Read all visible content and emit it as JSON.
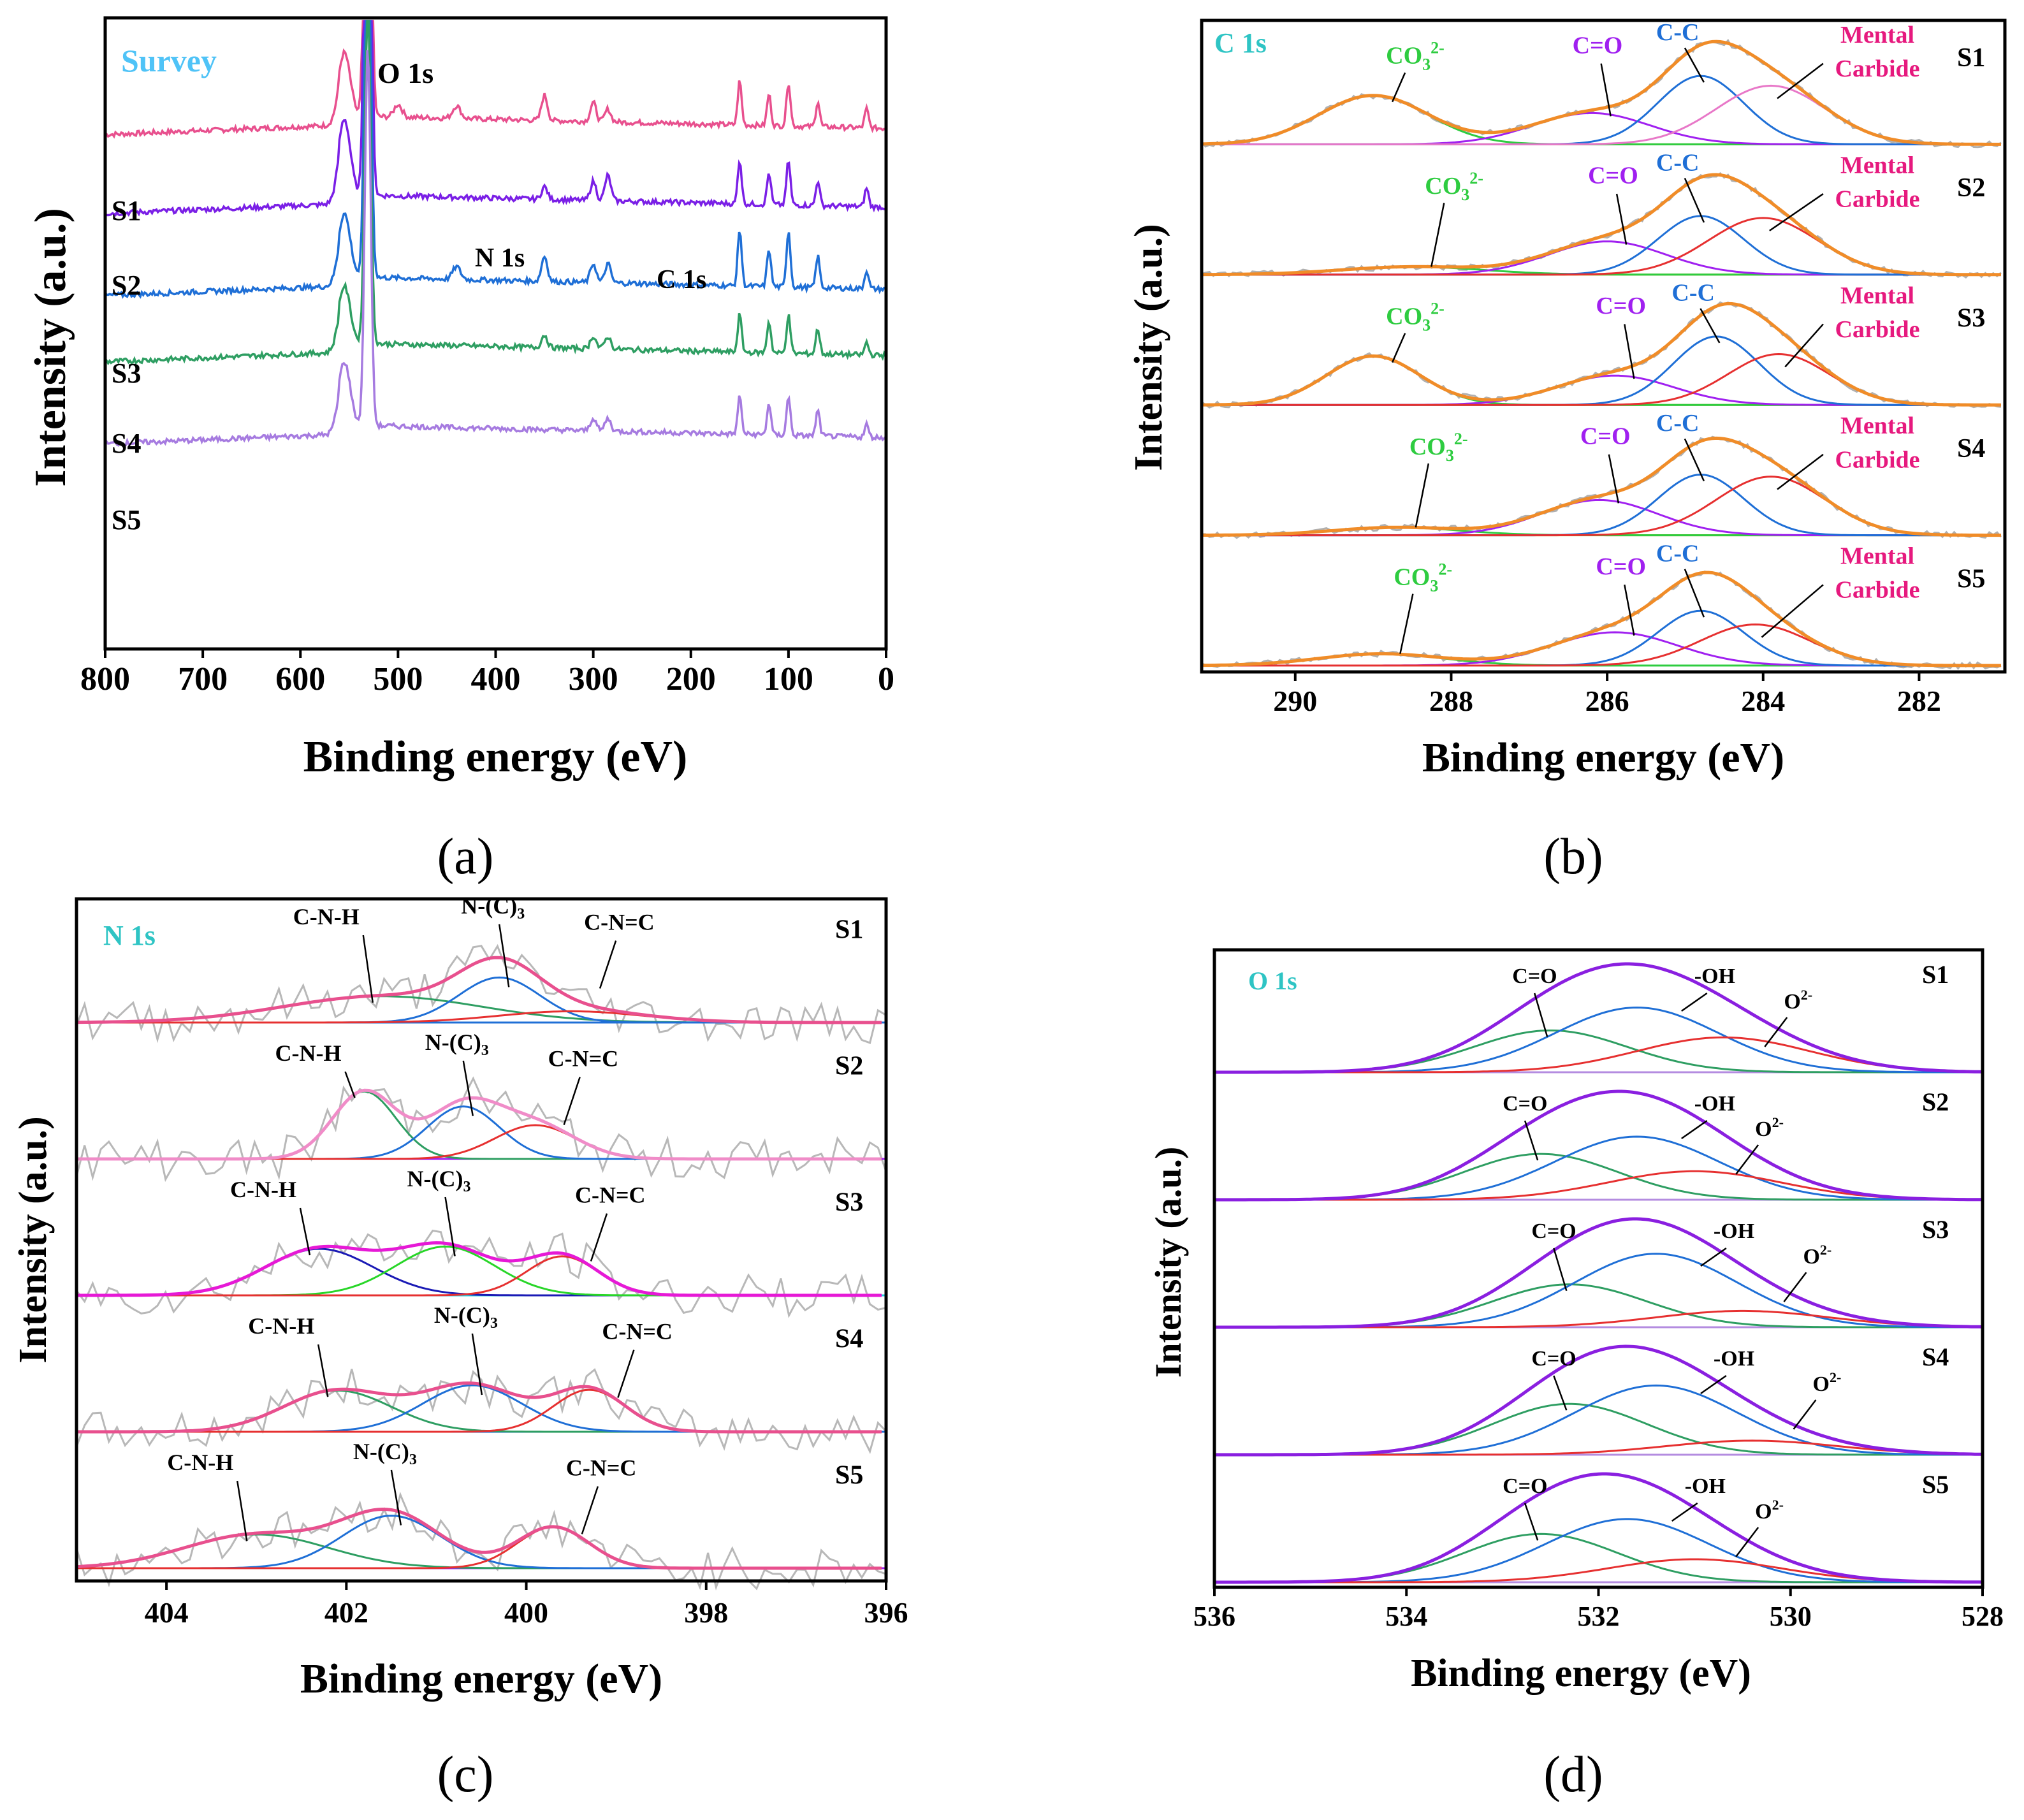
{
  "chart_data": [
    {
      "panel": "(a)",
      "type": "line",
      "title": "Survey",
      "xlabel": "Binding energy (eV)",
      "ylabel": "Intensity (a.u.)",
      "xlim": [
        800,
        0
      ],
      "x_ticks": [
        800,
        700,
        600,
        500,
        400,
        300,
        200,
        100,
        0
      ],
      "peak_annotations": [
        {
          "label": "O 1s",
          "x": 531
        },
        {
          "label": "N 1s",
          "x": 400
        },
        {
          "label": "C 1s",
          "x": 285
        }
      ],
      "series": [
        {
          "name": "S1",
          "color": "#e8508e",
          "baseline": 0.815,
          "features": [
            [
              555,
              0.1,
              6
            ],
            [
              531,
              0.88,
              3
            ],
            [
              500,
              0.02,
              4
            ],
            [
              440,
              0.02,
              4
            ],
            [
              350,
              0.04,
              3
            ],
            [
              300,
              0.03,
              3
            ],
            [
              285,
              0.02,
              3
            ],
            [
              150,
              0.07,
              2
            ],
            [
              120,
              0.05,
              2
            ],
            [
              100,
              0.07,
              2
            ],
            [
              70,
              0.04,
              2
            ],
            [
              20,
              0.03,
              2
            ]
          ]
        },
        {
          "name": "S2",
          "color": "#7a1fe6",
          "baseline": 0.69,
          "features": [
            [
              555,
              0.12,
              6
            ],
            [
              531,
              1.0,
              3
            ],
            [
              350,
              0.02,
              3
            ],
            [
              300,
              0.03,
              3
            ],
            [
              285,
              0.04,
              3
            ],
            [
              150,
              0.07,
              2
            ],
            [
              120,
              0.05,
              2
            ],
            [
              100,
              0.07,
              2
            ],
            [
              70,
              0.04,
              2
            ],
            [
              20,
              0.03,
              2
            ]
          ]
        },
        {
          "name": "S3",
          "color": "#1f6fd6",
          "baseline": 0.56,
          "features": [
            [
              555,
              0.1,
              6
            ],
            [
              531,
              0.7,
              3
            ],
            [
              440,
              0.02,
              4
            ],
            [
              350,
              0.04,
              3
            ],
            [
              300,
              0.03,
              3
            ],
            [
              285,
              0.03,
              3
            ],
            [
              150,
              0.09,
              2
            ],
            [
              120,
              0.06,
              2
            ],
            [
              100,
              0.09,
              2
            ],
            [
              70,
              0.05,
              2
            ],
            [
              20,
              0.03,
              2
            ]
          ]
        },
        {
          "name": "S4",
          "color": "#2e9e62",
          "baseline": 0.455,
          "features": [
            [
              555,
              0.09,
              6
            ],
            [
              531,
              0.55,
              3
            ],
            [
              350,
              0.02,
              3
            ],
            [
              300,
              0.02,
              3
            ],
            [
              285,
              0.02,
              3
            ],
            [
              150,
              0.06,
              2
            ],
            [
              120,
              0.05,
              2
            ],
            [
              100,
              0.06,
              2
            ],
            [
              70,
              0.04,
              2
            ],
            [
              20,
              0.02,
              2
            ]
          ]
        },
        {
          "name": "S5",
          "color": "#a67be0",
          "baseline": 0.325,
          "features": [
            [
              555,
              0.1,
              6
            ],
            [
              531,
              0.6,
              3
            ],
            [
              300,
              0.02,
              3
            ],
            [
              285,
              0.02,
              3
            ],
            [
              150,
              0.06,
              2
            ],
            [
              120,
              0.05,
              2
            ],
            [
              100,
              0.06,
              2
            ],
            [
              70,
              0.04,
              2
            ],
            [
              20,
              0.02,
              2
            ]
          ]
        }
      ]
    },
    {
      "panel": "(b)",
      "type": "line",
      "title": "C 1s",
      "xlabel": "Binding energy (eV)",
      "ylabel": "Intensity (a.u.)",
      "xlim": [
        291.2,
        280.9
      ],
      "x_ticks": [
        290,
        288,
        286,
        284,
        282
      ],
      "component_colors": {
        "CO3": "#2ecc40",
        "C=O": "#a020f0",
        "C-C": "#1f6fd6",
        "Carbide": "#e6197e",
        "envelope": "#f08c28",
        "raw": "#b0b0b0",
        "baseline": "#b5a000"
      },
      "series": [
        {
          "name": "S1",
          "carbide_color": "#e878c8",
          "components": [
            {
              "label": "CO3 2-",
              "center": 289.0,
              "height": 0.5,
              "sigma": 0.7
            },
            {
              "label": "C=O",
              "center": 286.2,
              "height": 0.32,
              "sigma": 0.75
            },
            {
              "label": "C-C",
              "center": 284.8,
              "height": 0.7,
              "sigma": 0.55
            },
            {
              "label": "Mental Carbide",
              "center": 283.9,
              "height": 0.6,
              "sigma": 0.7
            }
          ]
        },
        {
          "name": "S2",
          "carbide_color": "#e63030",
          "components": [
            {
              "label": "CO3 2-",
              "center": 288.5,
              "height": 0.08,
              "sigma": 0.9
            },
            {
              "label": "C=O",
              "center": 286.0,
              "height": 0.34,
              "sigma": 0.75
            },
            {
              "label": "C-C",
              "center": 284.8,
              "height": 0.6,
              "sigma": 0.55
            },
            {
              "label": "Mental Carbide",
              "center": 284.0,
              "height": 0.58,
              "sigma": 0.7
            }
          ]
        },
        {
          "name": "S3",
          "carbide_color": "#e63030",
          "components": [
            {
              "label": "CO3 2-",
              "center": 289.0,
              "height": 0.5,
              "sigma": 0.6
            },
            {
              "label": "C=O",
              "center": 285.9,
              "height": 0.3,
              "sigma": 0.75
            },
            {
              "label": "C-C",
              "center": 284.6,
              "height": 0.7,
              "sigma": 0.55
            },
            {
              "label": "Mental Carbide",
              "center": 283.8,
              "height": 0.52,
              "sigma": 0.65
            }
          ]
        },
        {
          "name": "S4",
          "carbide_color": "#e63030",
          "components": [
            {
              "label": "CO3 2-",
              "center": 288.7,
              "height": 0.08,
              "sigma": 0.8
            },
            {
              "label": "C=O",
              "center": 286.1,
              "height": 0.36,
              "sigma": 0.75
            },
            {
              "label": "C-C",
              "center": 284.8,
              "height": 0.62,
              "sigma": 0.55
            },
            {
              "label": "Mental Carbide",
              "center": 283.9,
              "height": 0.6,
              "sigma": 0.7
            }
          ]
        },
        {
          "name": "S5",
          "carbide_color": "#e63030",
          "components": [
            {
              "label": "CO3 2-",
              "center": 288.9,
              "height": 0.12,
              "sigma": 0.8
            },
            {
              "label": "C=O",
              "center": 285.9,
              "height": 0.34,
              "sigma": 0.8
            },
            {
              "label": "C-C",
              "center": 284.8,
              "height": 0.56,
              "sigma": 0.55
            },
            {
              "label": "Mental Carbide",
              "center": 284.1,
              "height": 0.42,
              "sigma": 0.7
            }
          ]
        }
      ]
    },
    {
      "panel": "(c)",
      "type": "line",
      "title": "N 1s",
      "xlabel": "Binding energy (eV)",
      "ylabel": "Intensity (a.u.)",
      "xlim": [
        405,
        396
      ],
      "x_ticks": [
        404,
        402,
        400,
        398,
        396
      ],
      "series": [
        {
          "name": "S1",
          "envelope_color": "#e8508e",
          "components": [
            {
              "label": "C-N-H",
              "center": 401.6,
              "height": 0.35,
              "sigma": 1.1,
              "color": "#2e9e62"
            },
            {
              "label": "N-(C)3",
              "center": 400.3,
              "height": 0.6,
              "sigma": 0.45,
              "color": "#1f6fd6"
            },
            {
              "label": "C-N=C",
              "center": 399.5,
              "height": 0.15,
              "sigma": 0.8,
              "color": "#e63030"
            }
          ]
        },
        {
          "name": "S2",
          "envelope_color": "#f08cc8",
          "components": [
            {
              "label": "C-N-H",
              "center": 401.8,
              "height": 0.9,
              "sigma": 0.35,
              "color": "#2e9e62"
            },
            {
              "label": "N-(C)3",
              "center": 400.7,
              "height": 0.7,
              "sigma": 0.4,
              "color": "#1f6fd6"
            },
            {
              "label": "C-N=C",
              "center": 399.9,
              "height": 0.45,
              "sigma": 0.45,
              "color": "#e63030"
            }
          ]
        },
        {
          "name": "S3",
          "envelope_color": "#e619d6",
          "components": [
            {
              "label": "C-N-H",
              "center": 402.3,
              "height": 0.62,
              "sigma": 0.6,
              "color": "#1a1ab5"
            },
            {
              "label": "N-(C)3",
              "center": 400.9,
              "height": 0.65,
              "sigma": 0.55,
              "color": "#28d628"
            },
            {
              "label": "C-N=C",
              "center": 399.6,
              "height": 0.52,
              "sigma": 0.4,
              "color": "#e63030"
            }
          ]
        },
        {
          "name": "S4",
          "envelope_color": "#e8508e",
          "components": [
            {
              "label": "C-N-H",
              "center": 402.1,
              "height": 0.55,
              "sigma": 0.6,
              "color": "#2e9e62"
            },
            {
              "label": "N-(C)3",
              "center": 400.6,
              "height": 0.62,
              "sigma": 0.55,
              "color": "#1f6fd6"
            },
            {
              "label": "C-N=C",
              "center": 399.3,
              "height": 0.56,
              "sigma": 0.4,
              "color": "#e63030"
            }
          ]
        },
        {
          "name": "S5",
          "envelope_color": "#e8508e",
          "components": [
            {
              "label": "C-N-H",
              "center": 403.0,
              "height": 0.45,
              "sigma": 0.8,
              "color": "#2e9e62"
            },
            {
              "label": "N-(C)3",
              "center": 401.5,
              "height": 0.7,
              "sigma": 0.55,
              "color": "#1f6fd6"
            },
            {
              "label": "C-N=C",
              "center": 399.7,
              "height": 0.55,
              "sigma": 0.4,
              "color": "#e63030"
            }
          ]
        }
      ]
    },
    {
      "panel": "(d)",
      "type": "line",
      "title": "O 1s",
      "xlabel": "Binding energy (eV)",
      "ylabel": "Intensity (a.u.)",
      "xlim": [
        536,
        528
      ],
      "x_ticks": [
        536,
        534,
        532,
        530,
        528
      ],
      "component_colors": {
        "C=O": "#2e9e62",
        "-OH": "#1f6fd6",
        "O2-": "#e63030",
        "envelope": "#8a1fe0",
        "baseline": "#b48ce0"
      },
      "series": [
        {
          "name": "S1",
          "components": [
            {
              "label": "C=O",
              "center": 532.5,
              "height": 0.42,
              "sigma": 0.8
            },
            {
              "label": "-OH",
              "center": 531.6,
              "height": 0.65,
              "sigma": 0.85
            },
            {
              "label": "O2-",
              "center": 530.7,
              "height": 0.35,
              "sigma": 0.9
            }
          ]
        },
        {
          "name": "S2",
          "components": [
            {
              "label": "C=O",
              "center": 532.6,
              "height": 0.45,
              "sigma": 0.8
            },
            {
              "label": "-OH",
              "center": 531.6,
              "height": 0.62,
              "sigma": 0.85
            },
            {
              "label": "O2-",
              "center": 531.0,
              "height": 0.28,
              "sigma": 0.9
            }
          ]
        },
        {
          "name": "S3",
          "components": [
            {
              "label": "C=O",
              "center": 532.3,
              "height": 0.42,
              "sigma": 0.8
            },
            {
              "label": "-OH",
              "center": 531.4,
              "height": 0.72,
              "sigma": 0.85
            },
            {
              "label": "O2-",
              "center": 530.5,
              "height": 0.16,
              "sigma": 0.9
            }
          ]
        },
        {
          "name": "S4",
          "components": [
            {
              "label": "C=O",
              "center": 532.3,
              "height": 0.47,
              "sigma": 0.8
            },
            {
              "label": "-OH",
              "center": 531.4,
              "height": 0.64,
              "sigma": 0.85
            },
            {
              "label": "O2-",
              "center": 530.4,
              "height": 0.13,
              "sigma": 0.9
            }
          ]
        },
        {
          "name": "S5",
          "components": [
            {
              "label": "C=O",
              "center": 532.6,
              "height": 0.42,
              "sigma": 0.8
            },
            {
              "label": "-OH",
              "center": 531.7,
              "height": 0.55,
              "sigma": 0.85
            },
            {
              "label": "O2-",
              "center": 531.0,
              "height": 0.2,
              "sigma": 0.9
            }
          ]
        }
      ]
    }
  ],
  "labels": {
    "a": {
      "caption": "(a)",
      "title": "Survey",
      "o1s": "O 1s",
      "n1s": "N 1s",
      "c1s": "C 1s",
      "xlabel": "Binding energy (eV)",
      "ylabel": "Intensity (a.u.)",
      "samples": [
        "S1",
        "S2",
        "S3",
        "S4",
        "S5"
      ]
    },
    "b": {
      "caption": "(b)",
      "title": "C 1s",
      "xlabel": "Binding energy (eV)",
      "ylabel": "Intensity (a.u.)",
      "samples": [
        "S1",
        "S2",
        "S3",
        "S4",
        "S5"
      ],
      "co3": "CO",
      "co3_sub": "3",
      "co3_sup": "2-",
      "co": "C=O",
      "cc": "C-C",
      "mental": "Mental",
      "carbide": "Carbide"
    },
    "c": {
      "caption": "(c)",
      "title": "N 1s",
      "xlabel": "Binding energy (eV)",
      "ylabel": "Intensity (a.u.)",
      "samples": [
        "S1",
        "S2",
        "S3",
        "S4",
        "S5"
      ],
      "cnh": "C-N-H",
      "nc3": "N-(C)",
      "nc3_sub": "3",
      "cnc": "C-N=C"
    },
    "d": {
      "caption": "(d)",
      "title": "O 1s",
      "xlabel": "Binding energy (eV)",
      "ylabel": "Intensity (a.u.)",
      "samples": [
        "S1",
        "S2",
        "S3",
        "S4",
        "S5"
      ],
      "co": "C=O",
      "oh": "-OH",
      "o2": "O",
      "o2_sup": "2-"
    }
  }
}
